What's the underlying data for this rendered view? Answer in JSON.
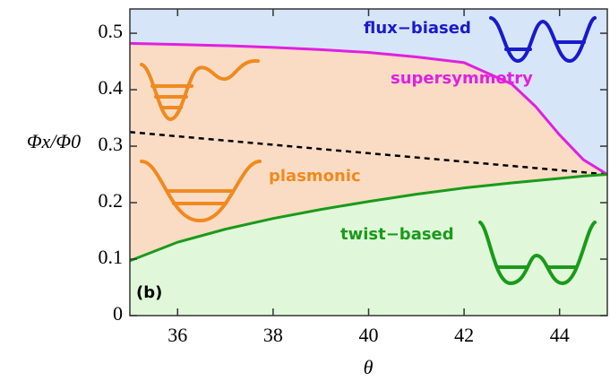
{
  "chart_data": {
    "type": "line",
    "x": [
      35,
      36,
      37,
      38,
      39,
      40,
      41,
      42,
      43,
      43.5,
      44,
      44.5,
      45
    ],
    "series": [
      {
        "name": "supersymmetry",
        "color": "#e020e0",
        "values": [
          0.482,
          0.48,
          0.478,
          0.475,
          0.471,
          0.466,
          0.458,
          0.448,
          0.41,
          0.37,
          0.32,
          0.276,
          0.25
        ]
      },
      {
        "color": "#000000",
        "dashed": true,
        "values": [
          0.325,
          0.3175,
          0.31,
          0.3025,
          0.295,
          0.2875,
          0.28,
          0.2725,
          0.265,
          0.26125,
          0.2575,
          0.25375,
          0.25
        ]
      },
      {
        "color": "#1a9a1a",
        "values": [
          0.097,
          0.13,
          0.153,
          0.172,
          0.188,
          0.202,
          0.215,
          0.226,
          0.235,
          0.239,
          0.243,
          0.247,
          0.25
        ]
      }
    ],
    "region_fills": [
      "#d6e6f8",
      "#fadcc4",
      "#e0f7da"
    ],
    "xlabel": "θ",
    "ylabel": "Φx/Φ0",
    "annotations": [
      {
        "text": "flux−biased",
        "color": "#1a1acc"
      },
      {
        "text": "plasmonic",
        "color": "#f08a20"
      },
      {
        "text": "twist−based",
        "color": "#1a9a1a"
      },
      {
        "text": "(b)",
        "color": "#000000"
      }
    ],
    "xlim": [
      35,
      45
    ],
    "ylim": [
      0,
      0.543
    ],
    "xticks": [
      36,
      38,
      40,
      42,
      44
    ],
    "yticks": [
      0,
      0.1,
      0.2,
      0.3,
      0.4,
      0.5
    ]
  }
}
